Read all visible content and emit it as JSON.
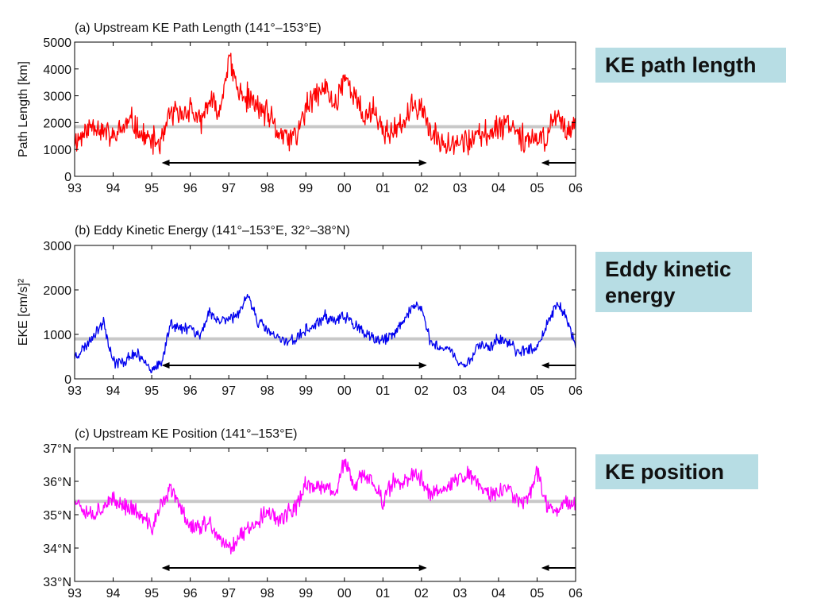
{
  "callouts": {
    "a": "KE path length",
    "b_line1": "Eddy kinetic",
    "b_line2": "energy",
    "c": "KE position"
  },
  "x_tick_labels": [
    "93",
    "94",
    "95",
    "96",
    "97",
    "98",
    "99",
    "00",
    "01",
    "02",
    "03",
    "04",
    "05",
    "06"
  ],
  "colors": {
    "a": "#ff0000",
    "b": "#0000ee",
    "c": "#ff00ff",
    "mean_line": "#c8c8c8",
    "arrow": "#000000"
  },
  "chart_data": [
    {
      "id": "a",
      "type": "line",
      "title": "(a) Upstream KE Path Length (141°–153°E)",
      "ylabel": "Path Length [km]",
      "xlim": [
        1993.0,
        2006.0
      ],
      "ylim": [
        0,
        5000
      ],
      "yticks": [
        0,
        1000,
        2000,
        3000,
        4000,
        5000
      ],
      "ytick_labels": [
        "0",
        "1000",
        "2000",
        "3000",
        "4000",
        "5000"
      ],
      "mean": 1850,
      "arrows": [
        [
          1995.3,
          2002.1
        ],
        [
          2005.15,
          2006.0
        ]
      ],
      "series": [
        {
          "x": [
            1993.0,
            1993.25,
            1993.5,
            1993.75,
            1994.0,
            1994.25,
            1994.5,
            1994.75,
            1995.0,
            1995.25,
            1995.5,
            1995.75,
            1996.0,
            1996.25,
            1996.5,
            1996.75,
            1997.0,
            1997.25,
            1997.5,
            1997.75,
            1998.0,
            1998.25,
            1998.5,
            1998.75,
            1999.0,
            1999.25,
            1999.5,
            1999.75,
            2000.0,
            2000.25,
            2000.5,
            2000.75,
            2001.0,
            2001.25,
            2001.5,
            2001.75,
            2002.0,
            2002.25,
            2002.5,
            2002.75,
            2003.0,
            2003.25,
            2003.5,
            2003.75,
            2004.0,
            2004.25,
            2004.5,
            2004.75,
            2005.0,
            2005.25,
            2005.5,
            2005.75,
            2006.0
          ],
          "values": [
            1300,
            1600,
            2000,
            1700,
            1400,
            1800,
            2050,
            1500,
            1300,
            1250,
            2400,
            2200,
            2600,
            1900,
            2800,
            2300,
            4400,
            3100,
            2900,
            2600,
            2300,
            1700,
            1400,
            1500,
            2500,
            3000,
            3300,
            2600,
            3800,
            3000,
            2200,
            2500,
            1700,
            1600,
            1900,
            2500,
            2700,
            1500,
            1300,
            1350,
            1300,
            1300,
            1500,
            1600,
            1900,
            2050,
            1700,
            1300,
            1300,
            1500,
            2350,
            1700,
            2100
          ]
        }
      ]
    },
    {
      "id": "b",
      "type": "line",
      "title": "(b) Eddy Kinetic Energy (141°–153°E, 32°–38°N)",
      "ylabel": "EKE [cm/s]²",
      "xlim": [
        1993.0,
        2006.0
      ],
      "ylim": [
        0,
        3000
      ],
      "yticks": [
        0,
        1000,
        2000,
        3000
      ],
      "ytick_labels": [
        "0",
        "1000",
        "2000",
        "3000"
      ],
      "mean": 900,
      "arrows": [
        [
          1995.3,
          2002.1
        ],
        [
          2005.15,
          2006.0
        ]
      ],
      "series": [
        {
          "x": [
            1993.0,
            1993.25,
            1993.5,
            1993.75,
            1994.0,
            1994.25,
            1994.5,
            1994.75,
            1995.0,
            1995.25,
            1995.5,
            1995.75,
            1996.0,
            1996.25,
            1996.5,
            1996.75,
            1997.0,
            1997.25,
            1997.5,
            1997.75,
            1998.0,
            1998.25,
            1998.5,
            1998.75,
            1999.0,
            1999.25,
            1999.5,
            1999.75,
            2000.0,
            2000.25,
            2000.5,
            2000.75,
            2001.0,
            2001.25,
            2001.5,
            2001.75,
            2002.0,
            2002.25,
            2002.5,
            2002.75,
            2003.0,
            2003.25,
            2003.5,
            2003.75,
            2004.0,
            2004.25,
            2004.5,
            2004.75,
            2005.0,
            2005.25,
            2005.5,
            2005.75,
            2006.0
          ],
          "values": [
            500,
            700,
            1000,
            1300,
            400,
            350,
            550,
            500,
            200,
            300,
            1300,
            1100,
            1200,
            950,
            1500,
            1300,
            1400,
            1400,
            1900,
            1300,
            1100,
            900,
            850,
            900,
            1100,
            1200,
            1400,
            1300,
            1400,
            1250,
            1000,
            900,
            850,
            950,
            1300,
            1600,
            1600,
            800,
            700,
            650,
            300,
            400,
            800,
            700,
            900,
            800,
            600,
            700,
            700,
            1200,
            1700,
            1400,
            700
          ]
        }
      ]
    },
    {
      "id": "c",
      "type": "line",
      "title": "(c) Upstream KE Position (141°–153°E)",
      "ylabel": "",
      "xlim": [
        1993.0,
        2006.0
      ],
      "ylim": [
        33,
        37
      ],
      "yticks": [
        33,
        34,
        35,
        36,
        37
      ],
      "ytick_labels": [
        "33°N",
        "34°N",
        "35°N",
        "36°N",
        "37°N"
      ],
      "mean": 35.4,
      "arrows": [
        [
          1995.3,
          2002.1
        ],
        [
          2005.15,
          2006.0
        ]
      ],
      "series": [
        {
          "x": [
            1993.0,
            1993.25,
            1993.5,
            1993.75,
            1994.0,
            1994.25,
            1994.5,
            1994.75,
            1995.0,
            1995.25,
            1995.5,
            1995.75,
            1996.0,
            1996.25,
            1996.5,
            1996.75,
            1997.0,
            1997.25,
            1997.5,
            1997.75,
            1998.0,
            1998.25,
            1998.5,
            1998.75,
            1999.0,
            1999.25,
            1999.5,
            1999.75,
            2000.0,
            2000.25,
            2000.5,
            2000.75,
            2001.0,
            2001.25,
            2001.5,
            2001.75,
            2002.0,
            2002.25,
            2002.5,
            2002.75,
            2003.0,
            2003.25,
            2003.5,
            2003.75,
            2004.0,
            2004.25,
            2004.5,
            2004.75,
            2005.0,
            2005.25,
            2005.5,
            2005.75,
            2006.0
          ],
          "values": [
            35.5,
            35.2,
            35.0,
            35.3,
            35.4,
            35.3,
            35.2,
            34.9,
            34.6,
            35.3,
            35.8,
            35.2,
            34.7,
            34.6,
            34.8,
            34.2,
            34.0,
            34.3,
            34.6,
            34.8,
            35.1,
            34.9,
            35.0,
            35.2,
            36.0,
            35.7,
            35.9,
            35.6,
            36.6,
            35.8,
            36.2,
            36.0,
            35.4,
            36.0,
            35.8,
            36.2,
            36.1,
            35.6,
            35.8,
            35.9,
            36.1,
            36.2,
            35.9,
            35.6,
            35.7,
            35.8,
            35.4,
            35.5,
            36.3,
            35.3,
            35.1,
            35.4,
            35.3
          ]
        }
      ]
    }
  ]
}
